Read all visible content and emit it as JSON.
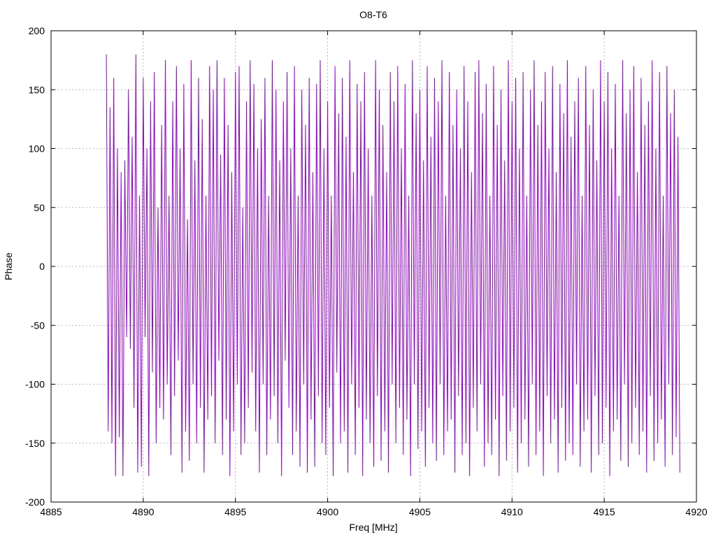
{
  "colors": {
    "series": "#9400d3",
    "grid": "#a0a0a0",
    "axis": "#000000",
    "background": "#ffffff"
  },
  "chart_data": {
    "type": "line",
    "title": "O8-T6",
    "xlabel": "Freq [MHz]",
    "ylabel": "Phase",
    "xlim": [
      4885,
      4920
    ],
    "ylim": [
      -200,
      200
    ],
    "x_ticks": [
      4885,
      4890,
      4895,
      4900,
      4905,
      4910,
      4915,
      4920
    ],
    "y_ticks": [
      -200,
      -150,
      -100,
      -50,
      0,
      50,
      100,
      150,
      200
    ],
    "x_tick_labels": [
      "4885",
      "4890",
      "4895",
      "4900",
      "4905",
      "4910",
      "4915",
      "4920"
    ],
    "y_tick_labels": [
      "-200",
      "-150",
      "-100",
      "-50",
      "0",
      "50",
      "100",
      "150",
      "200"
    ],
    "grid": true,
    "legend": "none",
    "series": [
      {
        "x_start": 4888.0,
        "x_step": 0.1,
        "y": [
          180,
          -140,
          135,
          -150,
          160,
          -178,
          100,
          -145,
          80,
          -178,
          90,
          -60,
          150,
          -70,
          110,
          -120,
          180,
          -175,
          60,
          -170,
          160,
          -60,
          100,
          -178,
          140,
          -90,
          165,
          -150,
          50,
          -120,
          120,
          -130,
          175,
          -100,
          60,
          -160,
          140,
          -110,
          170,
          -80,
          100,
          -175,
          155,
          -140,
          40,
          -165,
          175,
          -100,
          90,
          -150,
          160,
          -120,
          125,
          -175,
          60,
          -130,
          170,
          -110,
          150,
          -150,
          175,
          -80,
          95,
          -160,
          160,
          -130,
          120,
          -178,
          80,
          -140,
          165,
          -100,
          170,
          -160,
          50,
          -150,
          140,
          -120,
          175,
          -90,
          155,
          -140,
          100,
          -175,
          125,
          -100,
          160,
          -160,
          60,
          -130,
          175,
          -110,
          150,
          -150,
          90,
          -178,
          140,
          -80,
          165,
          -120,
          100,
          -160,
          170,
          -140,
          60,
          -170,
          150,
          -100,
          120,
          -175,
          160,
          -130,
          80,
          -170,
          155,
          -110,
          175,
          -150,
          100,
          -160,
          140,
          -120,
          60,
          -178,
          170,
          -90,
          130,
          -150,
          160,
          -140,
          110,
          -175,
          175,
          -100,
          80,
          -160,
          155,
          -120,
          140,
          -178,
          165,
          -130,
          100,
          -150,
          60,
          -170,
          175,
          -110,
          150,
          -165,
          120,
          -140,
          80,
          -175,
          165,
          -100,
          140,
          -150,
          170,
          -120,
          100,
          -160,
          155,
          -130,
          60,
          -178,
          175,
          -100,
          130,
          -155,
          150,
          -140,
          90,
          -170,
          170,
          -120,
          110,
          -150,
          160,
          -165,
          140,
          -100,
          175,
          -160,
          60,
          -140,
          165,
          -130,
          120,
          -175,
          150,
          -110,
          100,
          -160,
          170,
          -150,
          140,
          -178,
          80,
          -120,
          165,
          -140,
          175,
          -100,
          130,
          -170,
          155,
          -150,
          60,
          -160,
          170,
          -130,
          120,
          -178,
          150,
          -110,
          90,
          -165,
          175,
          -140,
          140,
          -120,
          160,
          -175,
          100,
          -150,
          165,
          -130,
          60,
          -170,
          150,
          -100,
          175,
          -160,
          120,
          -140,
          140,
          -178,
          165,
          -110,
          100,
          -150,
          170,
          -130,
          80,
          -175,
          155,
          -120,
          130,
          -165,
          175,
          -150,
          110,
          -160,
          140,
          -100,
          160,
          -170,
          60,
          -140,
          170,
          -130,
          120,
          -175,
          150,
          -110,
          90,
          -160,
          175,
          -150,
          140,
          -120,
          165,
          -178,
          100,
          -140,
          155,
          -130,
          60,
          -165,
          175,
          -100,
          130,
          -170,
          150,
          -150,
          170,
          -120,
          80,
          -160,
          160,
          -140,
          120,
          -175,
          140,
          -110,
          175,
          -165,
          100,
          -150,
          165,
          -130,
          60,
          -170,
          170,
          -100,
          130,
          -160,
          150,
          -145,
          110,
          -175
        ]
      }
    ]
  }
}
